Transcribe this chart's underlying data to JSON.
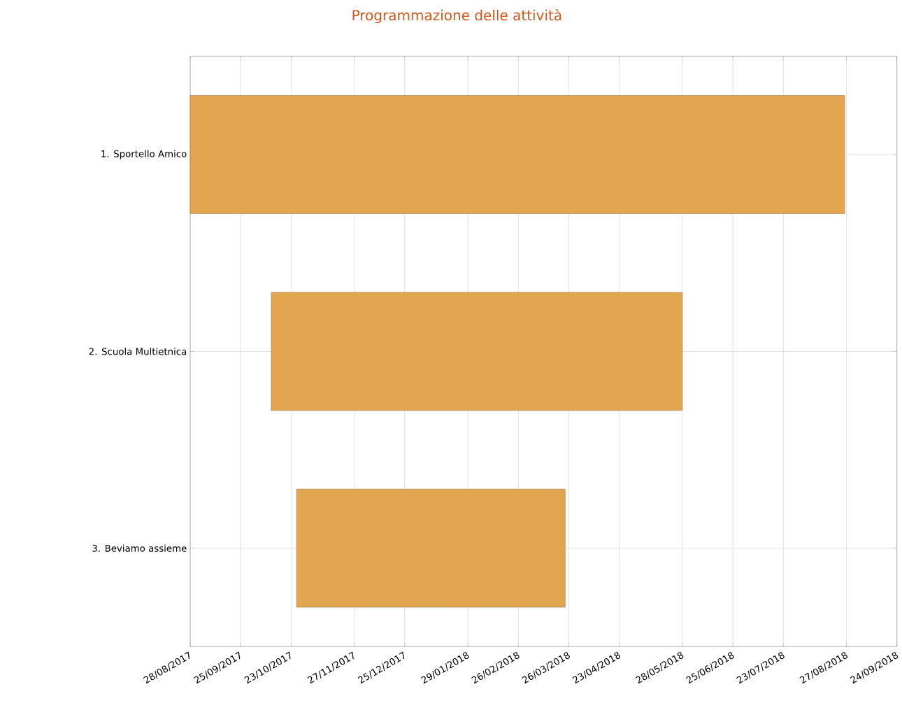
{
  "chart_data": {
    "type": "bar",
    "orientation": "horizontal",
    "title": "Programmazione delle attività",
    "categories": [
      "1. Sportello Amico",
      "2. Scuola Multietnica",
      "3. Beviamo assieme"
    ],
    "base": [
      17406,
      17451,
      17465
    ],
    "values": [
      363,
      228,
      149
    ],
    "color": "#e3a650",
    "xlim": [
      "2017-08-28",
      "2018-09-24"
    ],
    "xticks": [
      {
        "value": "2017-08-28",
        "label": "28/08/2017"
      },
      {
        "value": "2017-09-25",
        "label": "25/09/2017"
      },
      {
        "value": "2017-10-23",
        "label": "23/10/2017"
      },
      {
        "value": "2017-11-27",
        "label": "27/11/2017"
      },
      {
        "value": "2017-12-25",
        "label": "25/12/2017"
      },
      {
        "value": "2018-01-29",
        "label": "29/01/2018"
      },
      {
        "value": "2018-02-26",
        "label": "26/02/2018"
      },
      {
        "value": "2018-03-26",
        "label": "26/03/2018"
      },
      {
        "value": "2018-04-23",
        "label": "23/04/2018"
      },
      {
        "value": "2018-05-28",
        "label": "28/05/2018"
      },
      {
        "value": "2018-06-25",
        "label": "25/06/2018"
      },
      {
        "value": "2018-07-23",
        "label": "23/07/2018"
      },
      {
        "value": "2018-08-27",
        "label": "27/08/2018"
      },
      {
        "value": "2018-09-24",
        "label": "24/09/2018"
      }
    ],
    "grid": true
  }
}
